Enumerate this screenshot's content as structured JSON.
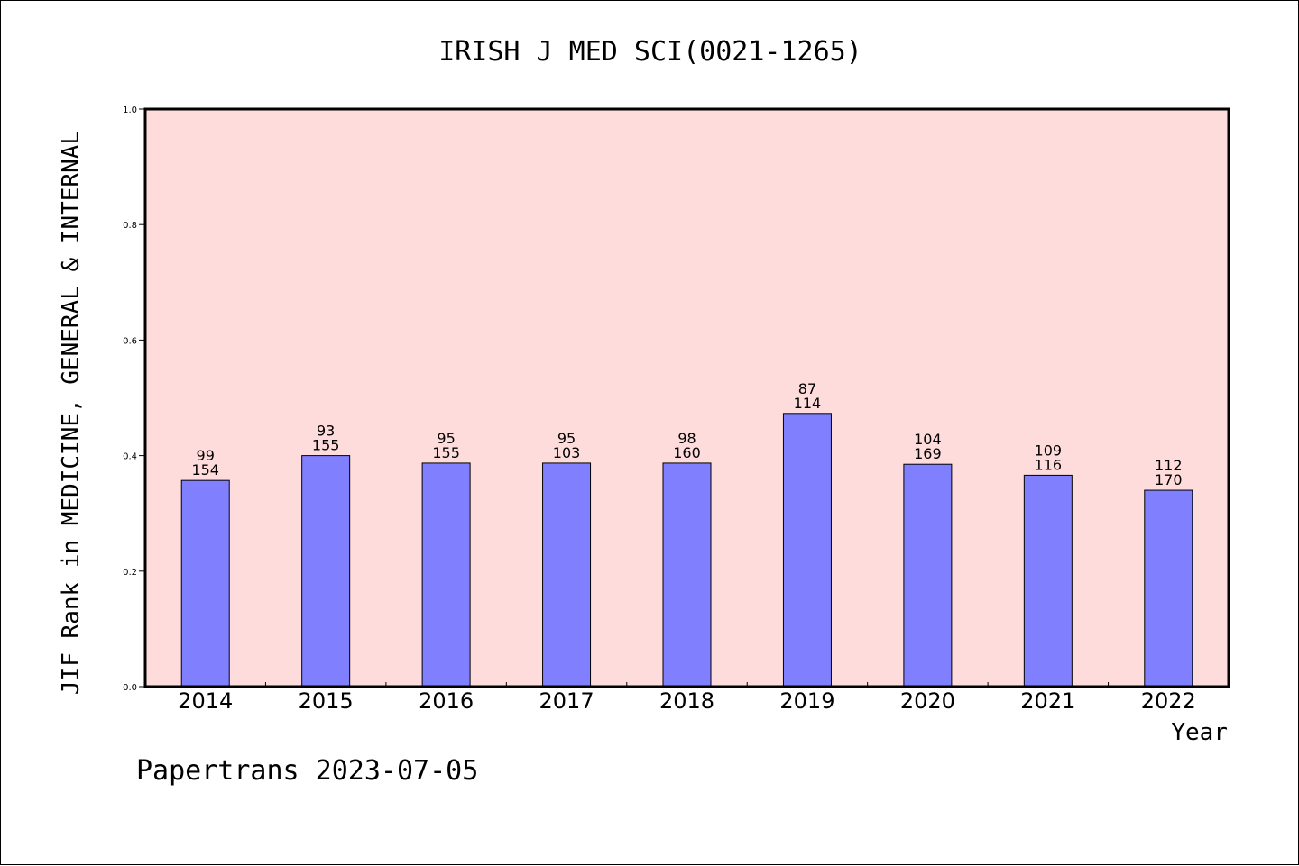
{
  "chart_data": {
    "type": "bar",
    "title": "IRISH J MED SCI(0021-1265)",
    "ylabel": "JIF Rank in MEDICINE, GENERAL & INTERNAL",
    "xlabel": "Year",
    "ylim": [
      0,
      1.0
    ],
    "yticks": [
      "0.0",
      "0.2",
      "0.4",
      "0.6",
      "0.8",
      "1.0"
    ],
    "categories": [
      "2014",
      "2015",
      "2016",
      "2017",
      "2018",
      "2019",
      "2020",
      "2021",
      "2022"
    ],
    "values": [
      0.357,
      0.4,
      0.387,
      0.387,
      0.387,
      0.473,
      0.385,
      0.366,
      0.34
    ],
    "rank": [
      "99",
      "93",
      "95",
      "95",
      "98",
      "87",
      "104",
      "109",
      "112"
    ],
    "total": [
      "154",
      "155",
      "155",
      "103",
      "160",
      "114",
      "169",
      "116",
      "170"
    ],
    "grid": false,
    "bar_color": "#8080ff",
    "plot_background": "#ffdcdc"
  },
  "footer": "Papertrans 2023-07-05"
}
